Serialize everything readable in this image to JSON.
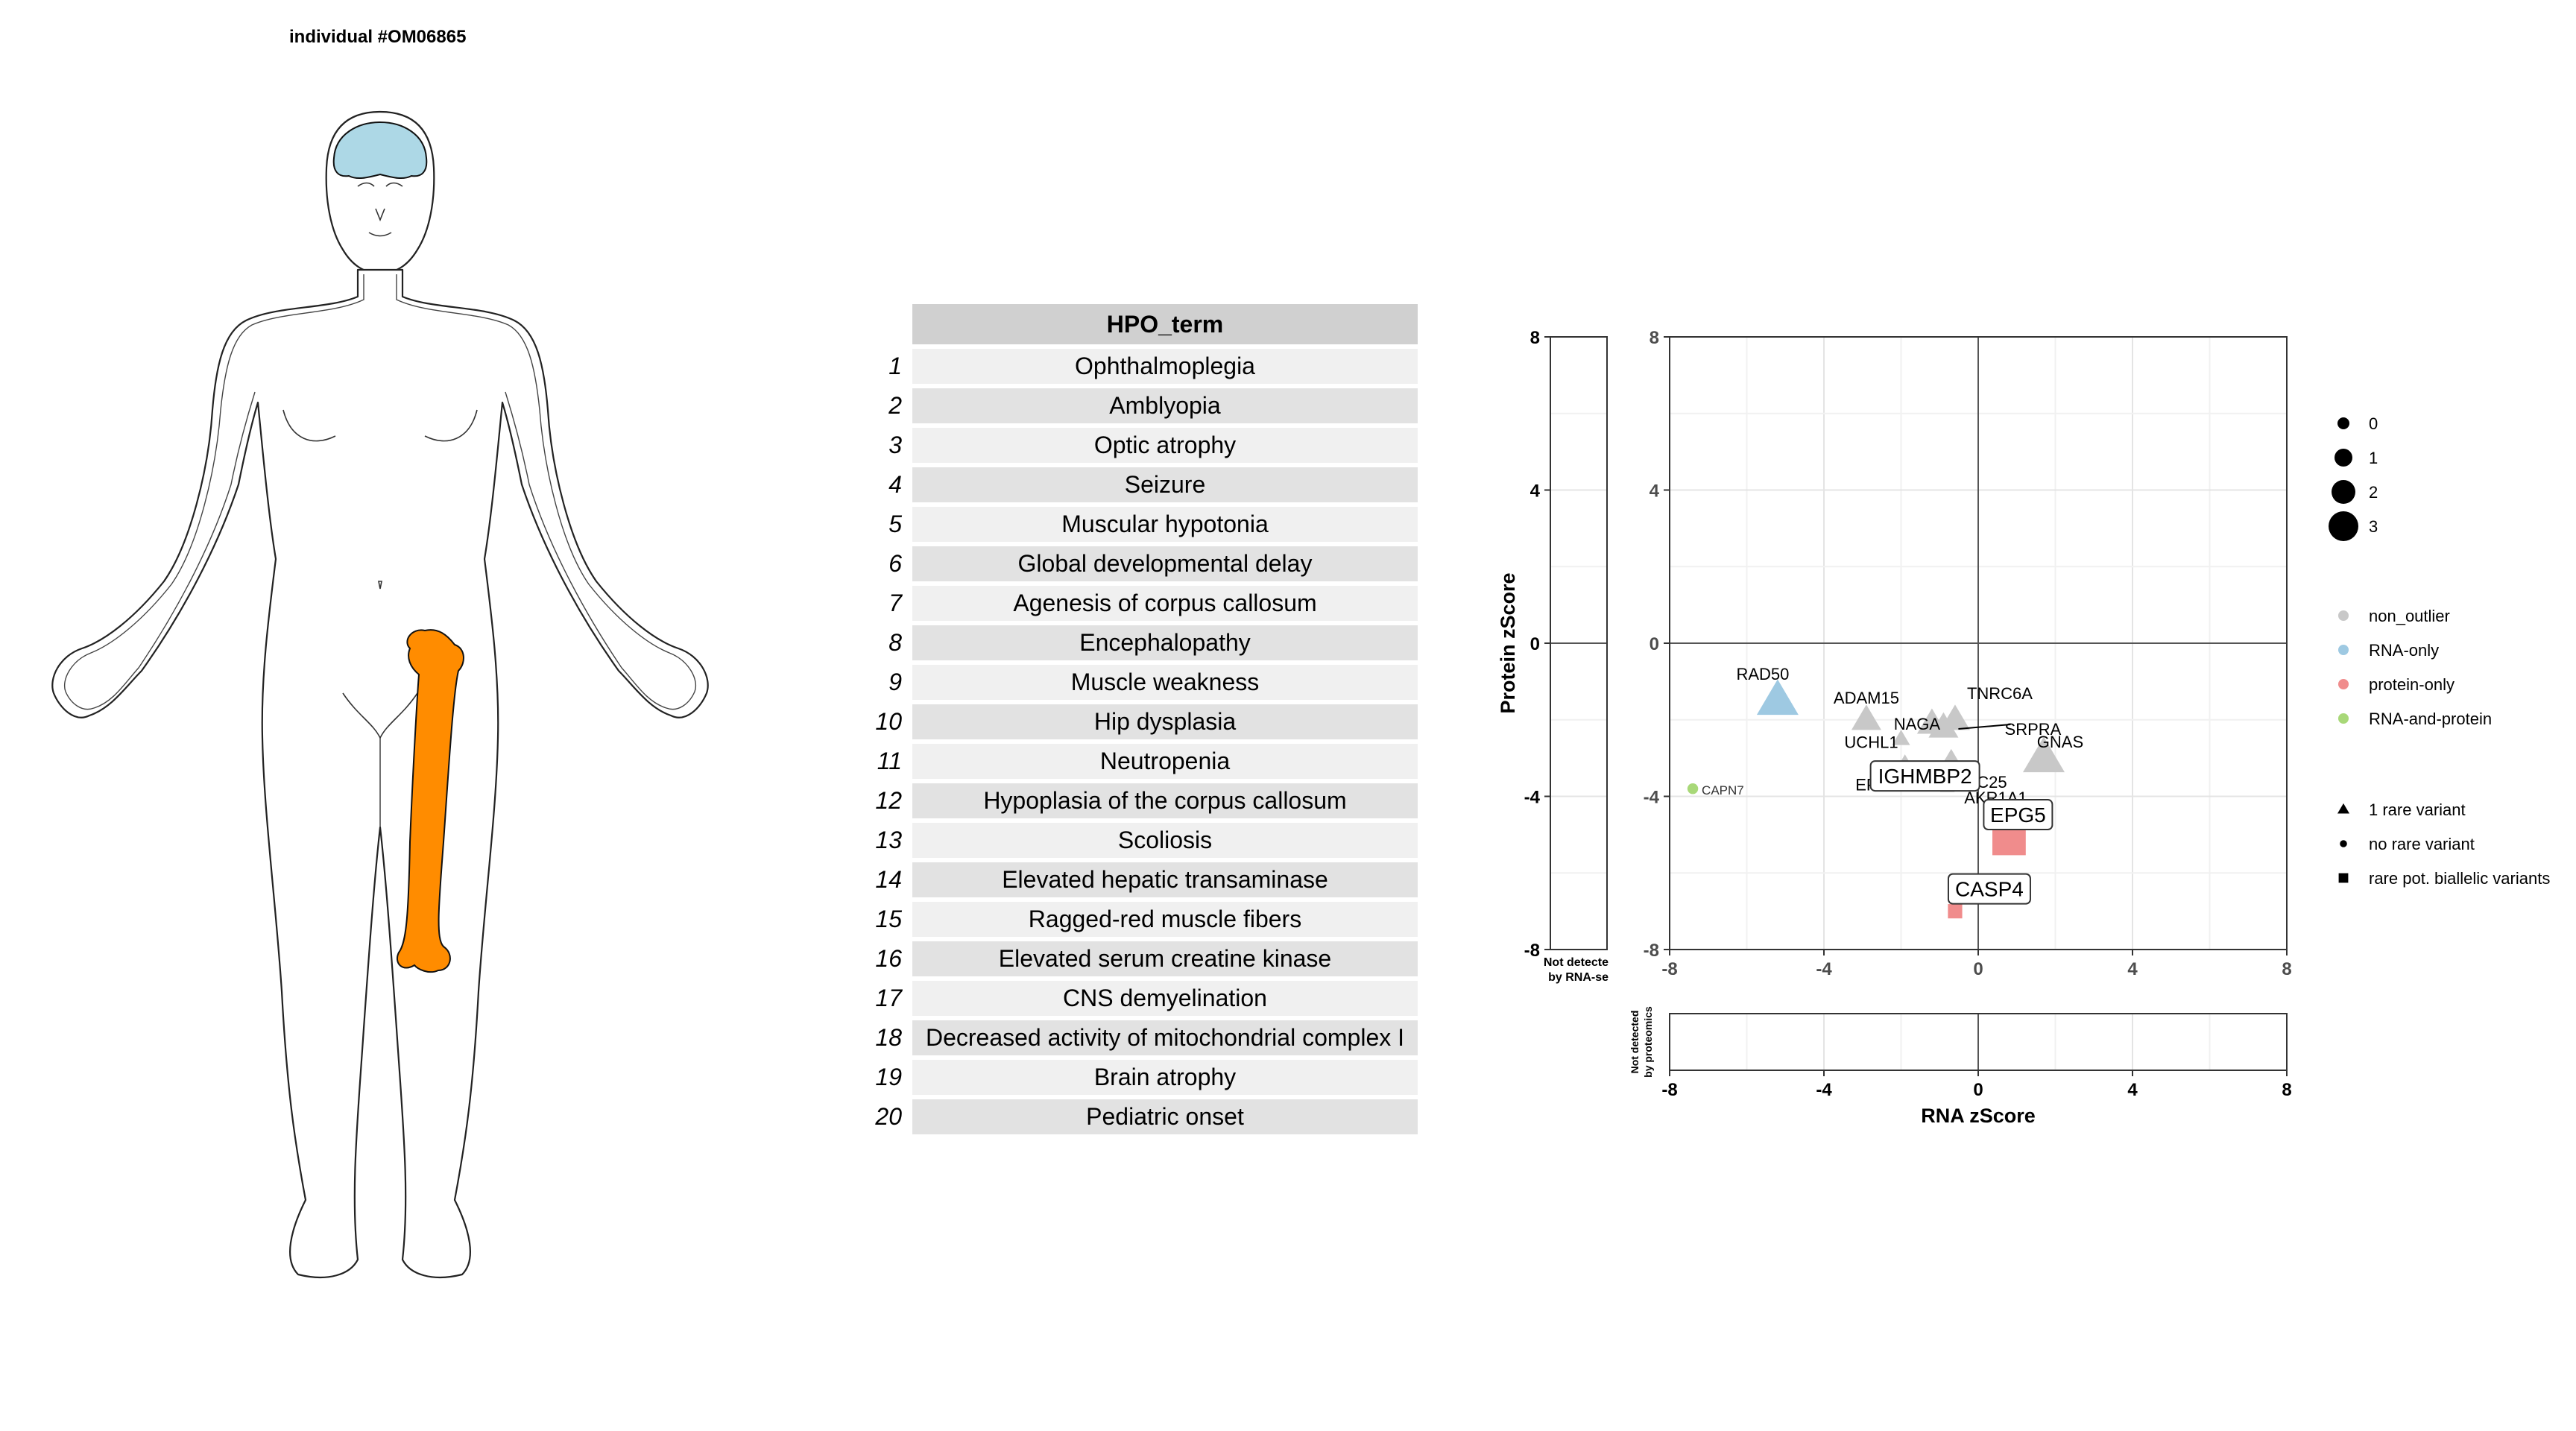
{
  "individual_title": "individual #OM06865",
  "body_diagram": {
    "highlighted_regions": [
      {
        "name": "brain",
        "color": "#ADD8E6"
      },
      {
        "name": "femur",
        "color": "#FF8C00"
      }
    ]
  },
  "hpo_table": {
    "header": "HPO_term",
    "rows": [
      {
        "index": "1",
        "term": "Ophthalmoplegia"
      },
      {
        "index": "2",
        "term": "Amblyopia"
      },
      {
        "index": "3",
        "term": "Optic atrophy"
      },
      {
        "index": "4",
        "term": "Seizure"
      },
      {
        "index": "5",
        "term": "Muscular hypotonia"
      },
      {
        "index": "6",
        "term": "Global developmental delay"
      },
      {
        "index": "7",
        "term": "Agenesis of corpus callosum"
      },
      {
        "index": "8",
        "term": "Encephalopathy"
      },
      {
        "index": "9",
        "term": "Muscle weakness"
      },
      {
        "index": "10",
        "term": "Hip dysplasia"
      },
      {
        "index": "11",
        "term": "Neutropenia"
      },
      {
        "index": "12",
        "term": "Hypoplasia of the corpus callosum"
      },
      {
        "index": "13",
        "term": "Scoliosis"
      },
      {
        "index": "14",
        "term": "Elevated hepatic transaminase"
      },
      {
        "index": "15",
        "term": "Ragged-red muscle fibers"
      },
      {
        "index": "16",
        "term": "Elevated serum creatine kinase"
      },
      {
        "index": "17",
        "term": "CNS demyelination"
      },
      {
        "index": "18",
        "term": "Decreased activity of mitochondrial complex I"
      },
      {
        "index": "19",
        "term": "Brain atrophy"
      },
      {
        "index": "20",
        "term": "Pediatric onset"
      }
    ]
  },
  "chart_data": {
    "type": "scatter",
    "xlabel": "RNA zScore",
    "ylabel": "Protein zScore",
    "xlim": [
      -8,
      8
    ],
    "ylim": [
      -8,
      8
    ],
    "x_ticks": [
      "-8",
      "-4",
      "0",
      "4",
      "8"
    ],
    "y_ticks": [
      "8",
      "4",
      "0",
      "-4",
      "-8"
    ],
    "not_detected_rna_label": [
      "Not detecte",
      "by RNA-se"
    ],
    "not_detected_protein_label": [
      "Not detected",
      "by proteomics"
    ],
    "colors": {
      "non_outlier": "#C8C8C8",
      "RNA-only": "#9EC9E2",
      "protein-only": "#F08C8C",
      "RNA-and-protein": "#A8D878"
    },
    "points": [
      {
        "gene": "RAD50",
        "x": -5.2,
        "y": -1.5,
        "category": "RNA-only",
        "shape": "triangle",
        "size": 2,
        "label_style": "plain"
      },
      {
        "gene": "ADAM15",
        "x": -2.9,
        "y": -2.0,
        "category": "non_outlier",
        "shape": "triangle",
        "size": 1,
        "label_style": "plain"
      },
      {
        "gene": "UCHL1",
        "x": -2.0,
        "y": -2.5,
        "category": "non_outlier",
        "shape": "triangle",
        "size": 0,
        "label_style": "plain"
      },
      {
        "gene": "NAGA",
        "x": -1.2,
        "y": -2.1,
        "category": "non_outlier",
        "shape": "triangle",
        "size": 1,
        "label_style": "plain"
      },
      {
        "gene": "TNRC6A",
        "x": -0.6,
        "y": -2.0,
        "category": "non_outlier",
        "shape": "triangle",
        "size": 1,
        "label_style": "plain"
      },
      {
        "gene": "SRPRA",
        "x": -0.9,
        "y": -2.2,
        "category": "non_outlier",
        "shape": "triangle",
        "size": 1,
        "label_style": "plain"
      },
      {
        "gene": "SPC25",
        "x": -0.7,
        "y": -3.0,
        "category": "non_outlier",
        "shape": "triangle",
        "size": 0,
        "label_style": "plain"
      },
      {
        "gene": "EPS15L1",
        "x": -1.9,
        "y": -3.3,
        "category": "non_outlier",
        "shape": "triangle",
        "size": 1,
        "label_style": "plain"
      },
      {
        "gene": "AKR1A1",
        "x": -0.9,
        "y": -3.6,
        "category": "non_outlier",
        "shape": "triangle",
        "size": 1,
        "label_style": "plain"
      },
      {
        "gene": "GNAS",
        "x": 1.7,
        "y": -3.0,
        "category": "non_outlier",
        "shape": "triangle",
        "size": 2,
        "label_style": "plain"
      },
      {
        "gene": "CAPN7",
        "x": -7.4,
        "y": -3.8,
        "category": "RNA-and-protein",
        "shape": "circle",
        "size": 0,
        "label_style": "small"
      },
      {
        "gene": "IGHMBP2",
        "x": -0.8,
        "y": -3.7,
        "category": "non_outlier",
        "shape": "square",
        "size": 0,
        "label_style": "boxed"
      },
      {
        "gene": "EPG5",
        "x": 0.8,
        "y": -5.1,
        "category": "protein-only",
        "shape": "square",
        "size": 2,
        "label_style": "boxed"
      },
      {
        "gene": "CASP4",
        "x": -0.6,
        "y": -7.0,
        "category": "protein-only",
        "shape": "square",
        "size": 0,
        "label_style": "boxed"
      }
    ],
    "legend_size": {
      "entries": [
        "0",
        "1",
        "2",
        "3"
      ]
    },
    "legend_color": {
      "entries": [
        "non_outlier",
        "RNA-only",
        "protein-only",
        "RNA-and-protein"
      ]
    },
    "legend_shape": {
      "entries": [
        "1 rare variant",
        "no rare variant",
        "rare pot. biallelic variants"
      ]
    },
    "legend_placement": "right",
    "grid": true
  }
}
